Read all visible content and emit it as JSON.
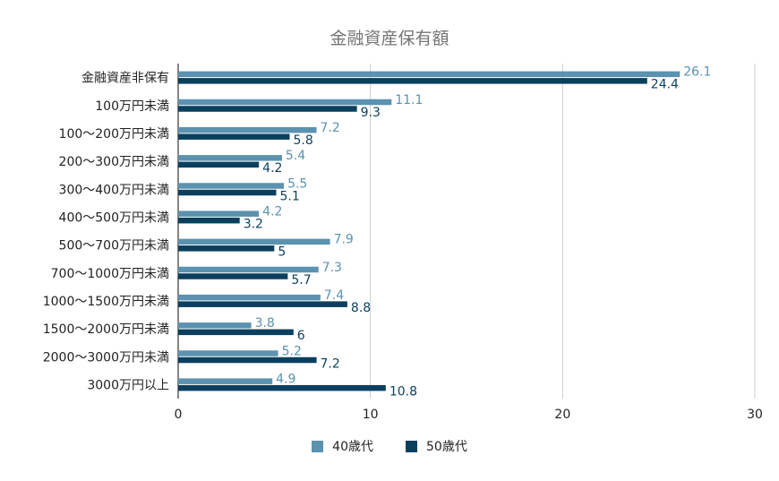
{
  "chart_data": {
    "type": "bar",
    "orientation": "horizontal",
    "title": "金融資産保有額",
    "xlabel": "",
    "ylabel": "",
    "xlim": [
      0,
      30
    ],
    "x_ticks": [
      "0",
      "10",
      "20",
      "30"
    ],
    "grid": "vertical",
    "legend_position": "bottom",
    "categories": [
      "金融資産非保有",
      "100万円未満",
      "100～200万円未満",
      "200～300万円未満",
      "300～400万円未満",
      "400～500万円未満",
      "500～700万円未満",
      "700～1000万円未満",
      "1000～1500万円未満",
      "1500～2000万円未満",
      "2000～3000万円未満",
      "3000万円以上"
    ],
    "series": [
      {
        "name": "40歳代",
        "color": "#5b92af",
        "values": [
          26.1,
          11.1,
          7.2,
          5.4,
          5.5,
          4.2,
          7.9,
          7.3,
          7.4,
          3.8,
          5.2,
          4.9
        ]
      },
      {
        "name": "50歳代",
        "color": "#0b3f5e",
        "values": [
          24.4,
          9.3,
          5.8,
          4.2,
          5.1,
          3.2,
          5,
          5.7,
          8.8,
          6,
          7.2,
          10.8
        ]
      }
    ]
  }
}
